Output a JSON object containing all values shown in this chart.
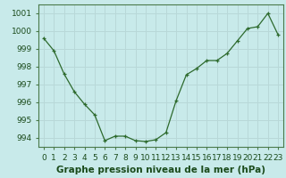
{
  "x": [
    0,
    1,
    2,
    3,
    4,
    5,
    6,
    7,
    8,
    9,
    10,
    11,
    12,
    13,
    14,
    15,
    16,
    17,
    18,
    19,
    20,
    21,
    22,
    23
  ],
  "y": [
    999.6,
    998.9,
    997.6,
    996.6,
    995.9,
    995.3,
    993.85,
    994.1,
    994.1,
    993.85,
    993.8,
    993.9,
    994.3,
    996.1,
    997.55,
    997.9,
    998.35,
    998.35,
    998.75,
    999.45,
    1000.15,
    1000.25,
    1001.0,
    999.8
  ],
  "line_color": "#2d6a2d",
  "marker_color": "#2d6a2d",
  "bg_color": "#c8eaea",
  "grid_color": "#b8d8d8",
  "border_color": "#4a7a4a",
  "xlabel": "Graphe pression niveau de la mer (hPa)",
  "ylim": [
    993.5,
    1001.5
  ],
  "yticks": [
    994,
    995,
    996,
    997,
    998,
    999,
    1000,
    1001
  ],
  "xticks": [
    0,
    1,
    2,
    3,
    4,
    5,
    6,
    7,
    8,
    9,
    10,
    11,
    12,
    13,
    14,
    15,
    16,
    17,
    18,
    19,
    20,
    21,
    22,
    23
  ],
  "tick_label_color": "#1a4a1a",
  "xlabel_color": "#1a4a1a",
  "xlabel_fontsize": 7.5,
  "tick_fontsize": 6.5,
  "xlim_left": -0.5,
  "xlim_right": 23.5
}
